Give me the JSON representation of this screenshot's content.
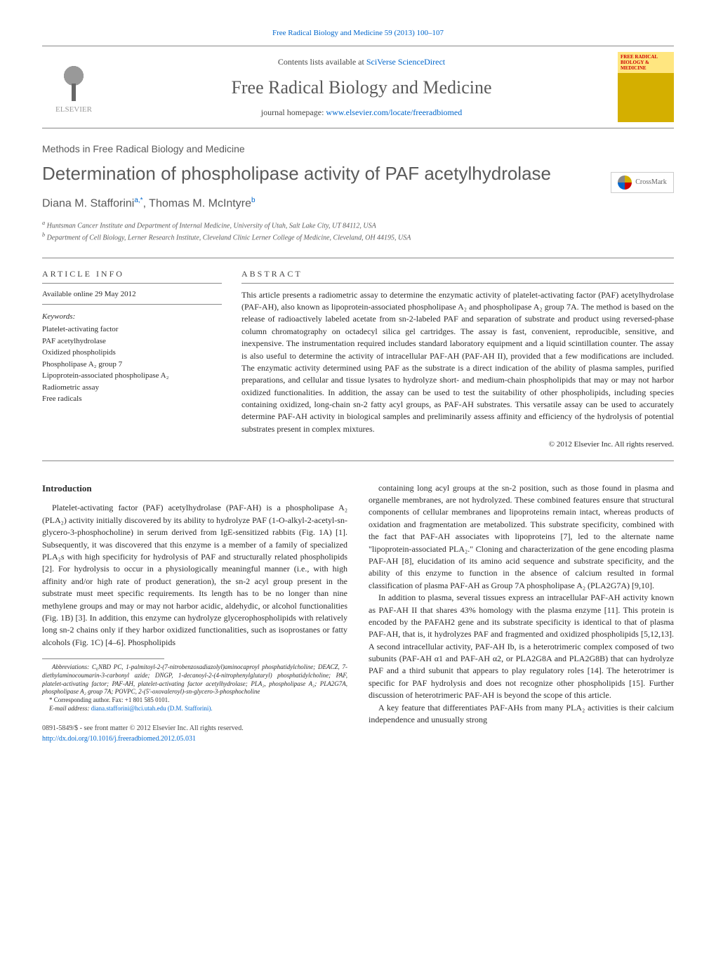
{
  "top_link": "Free Radical Biology and Medicine 59 (2013) 100–107",
  "header": {
    "contents_prefix": "Contents lists available at ",
    "contents_link": "SciVerse ScienceDirect",
    "journal_title": "Free Radical Biology and Medicine",
    "homepage_prefix": "journal homepage: ",
    "homepage_link": "www.elsevier.com/locate/freeradbiomed",
    "publisher_name": "ELSEVIER",
    "cover_text": "FREE RADICAL BIOLOGY & MEDICINE"
  },
  "crossmark": "CrossMark",
  "section_label": "Methods in Free Radical Biology and Medicine",
  "article_title": "Determination of phospholipase activity of PAF acetylhydrolase",
  "authors_html": "Diana M. Stafforini",
  "author1_sup": "a,*",
  "author2": ", Thomas M. McIntyre",
  "author2_sup": "b",
  "affiliations": {
    "a": "Huntsman Cancer Institute and Department of Internal Medicine, University of Utah, Salt Lake City, UT 84112, USA",
    "b": "Department of Cell Biology, Lerner Research Institute, Cleveland Clinic Lerner College of Medicine, Cleveland, OH 44195, USA"
  },
  "info": {
    "heading": "ARTICLE INFO",
    "available": "Available online 29 May 2012",
    "keywords_label": "Keywords:",
    "keywords": [
      "Platelet-activating factor",
      "PAF acetylhydrolase",
      "Oxidized phospholipids",
      "Phospholipase A₂ group 7",
      "Lipoprotein-associated phospholipase A₂",
      "Radiometric assay",
      "Free radicals"
    ]
  },
  "abstract": {
    "heading": "ABSTRACT",
    "text": "This article presents a radiometric assay to determine the enzymatic activity of platelet-activating factor (PAF) acetylhydrolase (PAF-AH), also known as lipoprotein-associated phospholipase A₂ and phospholipase A₂ group 7A. The method is based on the release of radioactively labeled acetate from sn-2-labeled PAF and separation of substrate and product using reversed-phase column chromatography on octadecyl silica gel cartridges. The assay is fast, convenient, reproducible, sensitive, and inexpensive. The instrumentation required includes standard laboratory equipment and a liquid scintillation counter. The assay is also useful to determine the activity of intracellular PAF-AH (PAF-AH II), provided that a few modifications are included. The enzymatic activity determined using PAF as the substrate is a direct indication of the ability of plasma samples, purified preparations, and cellular and tissue lysates to hydrolyze short- and medium-chain phospholipids that may or may not harbor oxidized functionalities. In addition, the assay can be used to test the suitability of other phospholipids, including species containing oxidized, long-chain sn-2 fatty acyl groups, as PAF-AH substrates. This versatile assay can be used to accurately determine PAF-AH activity in biological samples and preliminarily assess affinity and efficiency of the hydrolysis of potential substrates present in complex mixtures.",
    "copyright": "© 2012 Elsevier Inc. All rights reserved."
  },
  "body": {
    "intro_heading": "Introduction",
    "left_p1": "Platelet-activating factor (PAF) acetylhydrolase (PAF-AH) is a phospholipase A₂ (PLA₂) activity initially discovered by its ability to hydrolyze PAF (1-O-alkyl-2-acetyl-sn-glycero-3-phosphocholine) in serum derived from IgE-sensitized rabbits (Fig. 1A) [1]. Subsequently, it was discovered that this enzyme is a member of a family of specialized PLA₂s with high specificity for hydrolysis of PAF and structurally related phospholipids [2]. For hydrolysis to occur in a physiologically meaningful manner (i.e., with high affinity and/or high rate of product generation), the sn-2 acyl group present in the substrate must meet specific requirements. Its length has to be no longer than nine methylene groups and may or may not harbor acidic, aldehydic, or alcohol functionalities (Fig. 1B) [3]. In addition, this enzyme can hydrolyze glycerophospholipids with relatively long sn-2 chains only if they harbor oxidized functionalities, such as isoprostanes or fatty alcohols (Fig. 1C) [4–6]. Phospholipids",
    "right_p1": "containing long acyl groups at the sn-2 position, such as those found in plasma and organelle membranes, are not hydrolyzed. These combined features ensure that structural components of cellular membranes and lipoproteins remain intact, whereas products of oxidation and fragmentation are metabolized. This substrate specificity, combined with the fact that PAF-AH associates with lipoproteins [7], led to the alternate name \"lipoprotein-associated PLA₂.\" Cloning and characterization of the gene encoding plasma PAF-AH [8], elucidation of its amino acid sequence and substrate specificity, and the ability of this enzyme to function in the absence of calcium resulted in formal classification of plasma PAF-AH as Group 7A phospholipase A₂ (PLA2G7A) [9,10].",
    "right_p2": "In addition to plasma, several tissues express an intracellular PAF-AH activity known as PAF-AH II that shares 43% homology with the plasma enzyme [11]. This protein is encoded by the PAFAH2 gene and its substrate specificity is identical to that of plasma PAF-AH, that is, it hydrolyzes PAF and fragmented and oxidized phospholipids [5,12,13]. A second intracellular activity, PAF-AH Ib, is a heterotrimeric complex composed of two subunits (PAF-AH α1 and PAF-AH α2, or PLA2G8A and PLA2G8B) that can hydrolyze PAF and a third subunit that appears to play regulatory roles [14]. The heterotrimer is specific for PAF hydrolysis and does not recognize other phospholipids [15]. Further discussion of heterotrimeric PAF-AH is beyond the scope of this article.",
    "right_p3": "A key feature that differentiates PAF-AHs from many PLA₂ activities is their calcium independence and unusually strong"
  },
  "footnotes": {
    "abbrev": "Abbreviations: C₆NBD PC, 1-palmitoyl-2-(7-nitrobenzoxadiazolyl)aminocaproyl phosphatidylcholine; DEACZ, 7-diethylaminocoumarin-3-carbonyl azide; DNGP, 1-decanoyl-2-(4-nitrophenylglutaryl) phosphatidylcholine; PAF, platelet-activating factor; PAF-AH, platelet-activating factor acetylhydrolase; PLA₂, phospholipase A₂; PLA2G7A, phospholipase A₂ group 7A; POVPC, 2-(5'-oxovaleroyl)-sn-glycero-3-phosphocholine",
    "corresponding": "* Corresponding author. Fax: +1 801 585 0101.",
    "email_label": "E-mail address: ",
    "email": "diana.stafforini@hci.utah.edu (D.M. Stafforini)."
  },
  "footer": {
    "issn": "0891-5849/$ - see front matter © 2012 Elsevier Inc. All rights reserved.",
    "doi": "http://dx.doi.org/10.1016/j.freeradbiomed.2012.05.031"
  },
  "colors": {
    "link": "#0066cc",
    "text_grey": "#5a5a5a",
    "border": "#888888"
  }
}
